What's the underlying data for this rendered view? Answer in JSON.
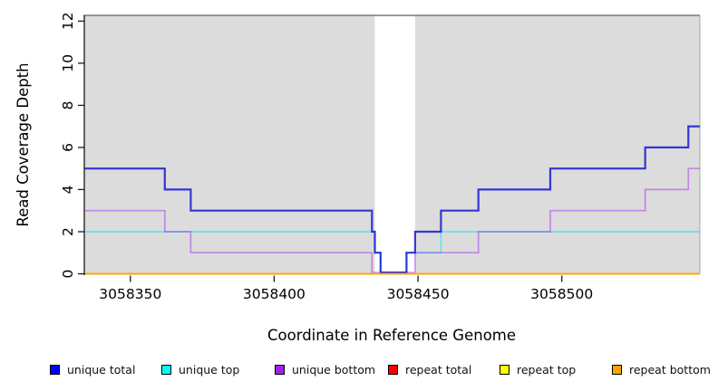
{
  "figure": {
    "xlabel": "Coordinate in Reference Genome",
    "ylabel": "Read Coverage Depth"
  },
  "legend": {
    "items": [
      {
        "label": "unique total",
        "color": "#0000FF"
      },
      {
        "label": "unique top",
        "color": "#00FFFF"
      },
      {
        "label": "unique bottom",
        "color": "#A020F0"
      },
      {
        "label": "repeat total",
        "color": "#FF0000"
      },
      {
        "label": "repeat top",
        "color": "#FFFF00"
      },
      {
        "label": "repeat bottom",
        "color": "#FFA500"
      }
    ]
  },
  "chart_data": {
    "type": "line",
    "step": true,
    "title": "",
    "xlabel": "Coordinate in Reference Genome",
    "ylabel": "Read Coverage Depth",
    "xlim": [
      3058334,
      3058548
    ],
    "ylim": [
      0,
      12
    ],
    "x_ticks": [
      3058350,
      3058400,
      3058450,
      3058500
    ],
    "y_ticks": [
      0,
      2,
      4,
      6,
      8,
      10,
      12
    ],
    "grid": false,
    "legend_position": "bottom",
    "plot_bg_color": "#dcdcdc",
    "gap_region": {
      "x0": 3058435,
      "x1": 3058449,
      "color": "#ffffff"
    },
    "shaded_regions": [
      {
        "x0": 3058334,
        "x1": 3058435,
        "color": "#dcdcdc"
      },
      {
        "x0": 3058449,
        "x1": 3058548,
        "color": "#dcdcdc"
      }
    ],
    "border_color": "#787878",
    "series": [
      {
        "name": "unique top",
        "color": "rgba(0,235,235,0.55)",
        "width": 1.7,
        "lift_at_zero": true,
        "points": [
          [
            3058334,
            2
          ],
          [
            3058435,
            1
          ],
          [
            3058437,
            0
          ],
          [
            3058446,
            1
          ],
          [
            3058458,
            2
          ]
        ]
      },
      {
        "name": "unique bottom",
        "color": "rgba(160,32,240,0.45)",
        "width": 1.7,
        "lift_at_zero": true,
        "points": [
          [
            3058334,
            3
          ],
          [
            3058362,
            2
          ],
          [
            3058371,
            1
          ],
          [
            3058434,
            0
          ],
          [
            3058449,
            1
          ],
          [
            3058471,
            2
          ],
          [
            3058496,
            3
          ],
          [
            3058529,
            4
          ],
          [
            3058544,
            5
          ]
        ]
      },
      {
        "name": "unique total",
        "color": "rgba(16,16,214,0.82)",
        "width": 2.2,
        "lift_at_zero": true,
        "points": [
          [
            3058334,
            5
          ],
          [
            3058362,
            4
          ],
          [
            3058371,
            3
          ],
          [
            3058434,
            2
          ],
          [
            3058435,
            1
          ],
          [
            3058437,
            0
          ],
          [
            3058446,
            1
          ],
          [
            3058449,
            2
          ],
          [
            3058458,
            3
          ],
          [
            3058471,
            4
          ],
          [
            3058496,
            5
          ],
          [
            3058529,
            6
          ],
          [
            3058544,
            7
          ]
        ]
      },
      {
        "name": "repeat total",
        "color": "rgba(255,0,0,0.6)",
        "width": 1.7,
        "lift_at_zero": false,
        "points": [
          [
            3058334,
            0
          ]
        ]
      },
      {
        "name": "repeat top",
        "color": "rgba(255,255,0,0.6)",
        "width": 1.7,
        "lift_at_zero": false,
        "points": [
          [
            3058334,
            0
          ]
        ]
      },
      {
        "name": "repeat bottom",
        "color": "rgba(255,165,0,0.95)",
        "width": 1.9,
        "lift_at_zero": false,
        "points": [
          [
            3058334,
            0
          ]
        ]
      }
    ]
  }
}
